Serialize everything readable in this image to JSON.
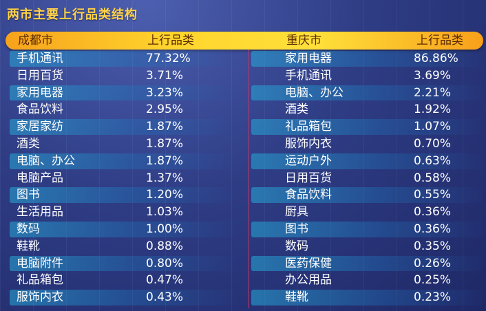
{
  "title": "两市主要上行品类结构",
  "headers": {
    "chengdu_city": "成都市",
    "chengdu_metric": "上行品类",
    "chongqing_city": "重庆市",
    "chongqing_metric": "上行品类"
  },
  "chart_data": {
    "type": "table",
    "title": "两市主要上行品类结构",
    "columns": [
      "成都市",
      "上行品类",
      "重庆市",
      "上行品类"
    ],
    "rows": [
      {
        "cd_cat": "手机通讯",
        "cd_val": "77.32%",
        "cq_cat": "家用电器",
        "cq_val": "86.86%"
      },
      {
        "cd_cat": "日用百货",
        "cd_val": "3.71%",
        "cq_cat": "手机通讯",
        "cq_val": "3.69%"
      },
      {
        "cd_cat": "家用电器",
        "cd_val": "3.23%",
        "cq_cat": "电脑、办公",
        "cq_val": "2.21%"
      },
      {
        "cd_cat": "食品饮料",
        "cd_val": "2.95%",
        "cq_cat": "酒类",
        "cq_val": "1.92%"
      },
      {
        "cd_cat": "家居家纺",
        "cd_val": "1.87%",
        "cq_cat": "礼品箱包",
        "cq_val": "1.07%"
      },
      {
        "cd_cat": "酒类",
        "cd_val": "1.87%",
        "cq_cat": "服饰内衣",
        "cq_val": "0.70%"
      },
      {
        "cd_cat": "电脑、办公",
        "cd_val": "1.87%",
        "cq_cat": "运动户外",
        "cq_val": "0.63%"
      },
      {
        "cd_cat": "电脑产品",
        "cd_val": "1.37%",
        "cq_cat": "日用百货",
        "cq_val": "0.58%"
      },
      {
        "cd_cat": "图书",
        "cd_val": "1.20%",
        "cq_cat": "食品饮料",
        "cq_val": "0.55%"
      },
      {
        "cd_cat": "生活用品",
        "cd_val": "1.03%",
        "cq_cat": "厨具",
        "cq_val": "0.36%"
      },
      {
        "cd_cat": "数码",
        "cd_val": "1.00%",
        "cq_cat": "图书",
        "cq_val": "0.36%"
      },
      {
        "cd_cat": "鞋靴",
        "cd_val": "0.88%",
        "cq_cat": "数码",
        "cq_val": "0.35%"
      },
      {
        "cd_cat": "电脑附件",
        "cd_val": "0.80%",
        "cq_cat": "医药保健",
        "cq_val": "0.26%"
      },
      {
        "cd_cat": "礼品箱包",
        "cd_val": "0.47%",
        "cq_cat": "办公用品",
        "cq_val": "0.25%"
      },
      {
        "cd_cat": "服饰内衣",
        "cd_val": "0.43%",
        "cq_cat": "鞋靴",
        "cq_val": "0.23%"
      }
    ]
  },
  "colors": {
    "title": "#ffd24a",
    "header_bar": "#ffd52d",
    "header_text": "#5a2b00",
    "band": "#26aad7",
    "divider": "#b83a6a",
    "background": "#2f3d85"
  }
}
